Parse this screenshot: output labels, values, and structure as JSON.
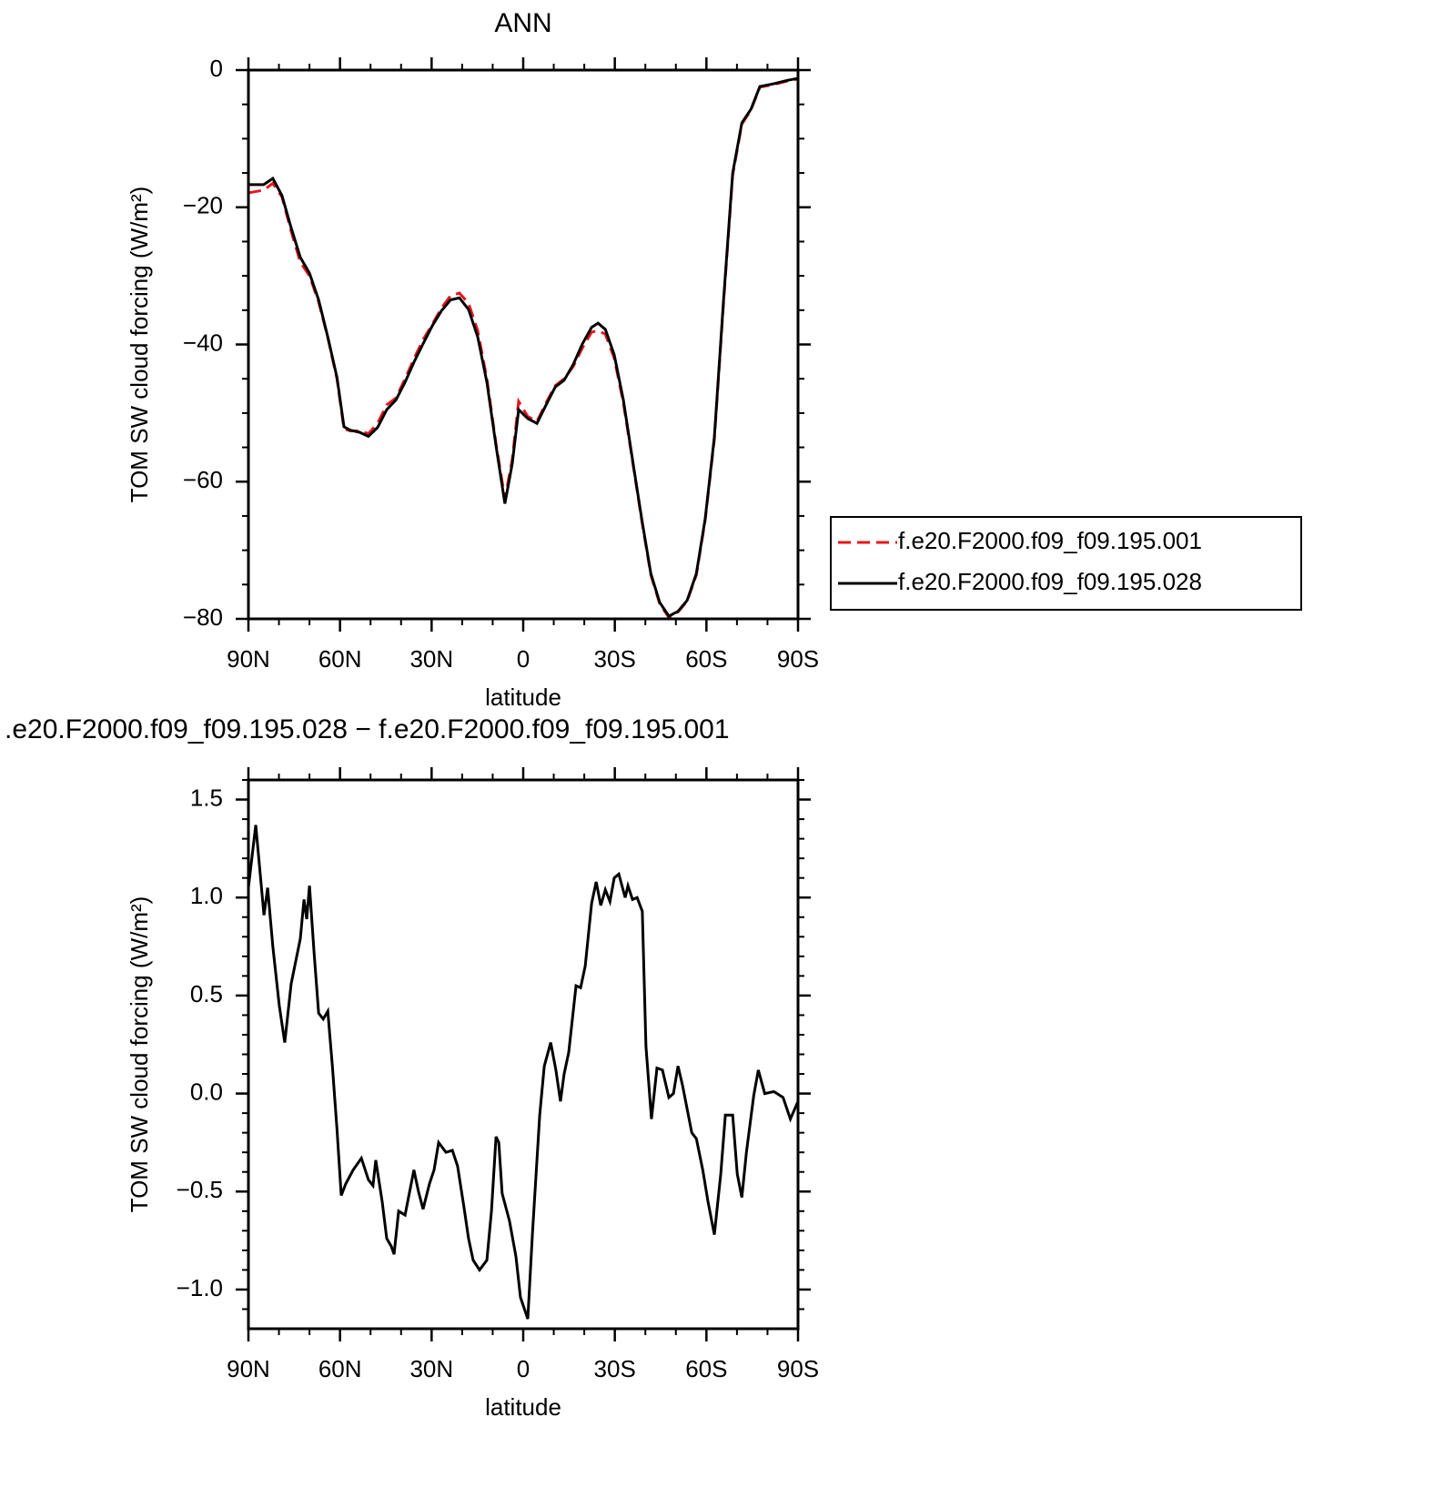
{
  "chart_data": [
    {
      "type": "line",
      "title": "ANN",
      "xlabel": "latitude",
      "ylabel": "TOM SW cloud forcing (W/m²)",
      "x": [
        90,
        85,
        82,
        79,
        76,
        73,
        70,
        67,
        64,
        61,
        58.7,
        56.6,
        53.6,
        50.7,
        47.7,
        44.7,
        41.7,
        38.7,
        35.8,
        32.8,
        29.8,
        26.8,
        23.8,
        20.9,
        17.9,
        14.9,
        11.9,
        8.9,
        6,
        3.6,
        1.5,
        -1.5,
        -4.5,
        -7.5,
        -10.5,
        -13.4,
        -16.4,
        -19.4,
        -22.4,
        -24.5,
        -26.9,
        -29.8,
        -32.8,
        -35.8,
        -38.8,
        -41.8,
        -44.7,
        -47.7,
        -50.7,
        -53.7,
        -56.7,
        -59.6,
        -62.6,
        -65.6,
        -68.6,
        -71.6,
        -74.6,
        -77.5,
        -82,
        -86.5,
        -90
      ],
      "series": [
        {
          "name": "f.e20.F2000.f09_f09.195.001",
          "color": "#e8151b",
          "dash": "dashed",
          "values": [
            -17.9,
            -17.5,
            -16.5,
            -18.5,
            -23.5,
            -28,
            -30,
            -33.8,
            -39,
            -45,
            -52.3,
            -52.6,
            -52.6,
            -53,
            -51.5,
            -48.8,
            -47.8,
            -45,
            -42.1,
            -39.3,
            -37.1,
            -34.7,
            -32.9,
            -32.5,
            -34,
            -38,
            -45,
            -54.5,
            -62.5,
            -56.8,
            -48.3,
            -50.5,
            -51.2,
            -48.5,
            -46,
            -45,
            -43.2,
            -40.5,
            -38.2,
            -38,
            -38.5,
            -42,
            -48.5,
            -57,
            -65.6,
            -73.6,
            -77.8,
            -79.8,
            -79,
            -77.4,
            -73.6,
            -65.6,
            -53.8,
            -34,
            -15.3,
            -7.9,
            -5.8,
            -2.5,
            -2.1,
            -1.6,
            -1.3
          ]
        },
        {
          "name": "f.e20.F2000.f09_f09.195.028",
          "color": "#000000",
          "dash": "solid",
          "values": [
            -16.7,
            -16.7,
            -15.8,
            -18.3,
            -23,
            -27.3,
            -29.6,
            -33.5,
            -38.9,
            -44.8,
            -52,
            -52.5,
            -52.8,
            -53.4,
            -52.1,
            -49.5,
            -48.1,
            -45.5,
            -42.6,
            -39.9,
            -37.3,
            -35.1,
            -33.5,
            -33.2,
            -34.9,
            -38.9,
            -45.5,
            -54.8,
            -63.2,
            -57.4,
            -49.5,
            -50.8,
            -51.5,
            -48.8,
            -46.2,
            -45.2,
            -42.9,
            -39.9,
            -37.5,
            -36.9,
            -37.8,
            -41.5,
            -48.1,
            -56.8,
            -65.4,
            -73.4,
            -77.6,
            -79.6,
            -78.9,
            -77.3,
            -73.4,
            -65.4,
            -53.5,
            -33.6,
            -15,
            -7.7,
            -5.7,
            -2.4,
            -2.0,
            -1.5,
            -1.2
          ]
        }
      ],
      "xlim": [
        90,
        -90
      ],
      "xticks": [
        {
          "value": 90,
          "label": "90N"
        },
        {
          "value": 60,
          "label": "60N"
        },
        {
          "value": 30,
          "label": "30N"
        },
        0,
        {
          "value": -30,
          "label": "30S"
        },
        {
          "value": -60,
          "label": "60S"
        },
        {
          "value": -90,
          "label": "90S"
        }
      ],
      "ylim": [
        -80,
        0
      ],
      "yticks": [
        {
          "value": -80,
          "label": "−80"
        },
        {
          "value": -60,
          "label": "−60"
        },
        {
          "value": -40,
          "label": "−40"
        },
        {
          "value": -20,
          "label": "−20"
        },
        0
      ],
      "legend": "right"
    },
    {
      "type": "line",
      "title": ".e20.F2000.f09_f09.195.028 − f.e20.F2000.f09_f09.195.001",
      "xlabel": "latitude",
      "ylabel": "TOM SW cloud forcing (W/m²)",
      "x": [
        90,
        87.6,
        84.9,
        83.7,
        82,
        79.9,
        78.1,
        76,
        73,
        71.8,
        70.9,
        70,
        68.5,
        67,
        65.5,
        64,
        62.5,
        61,
        59.6,
        58.1,
        55.7,
        53,
        50.7,
        49.2,
        48.3,
        46.2,
        44.7,
        43.2,
        42.3,
        40.8,
        38.7,
        35.8,
        34.3,
        32.8,
        30.7,
        29.2,
        27.7,
        25.3,
        23.2,
        21.5,
        19.4,
        17.9,
        16.4,
        14.3,
        11.9,
        10.4,
        8.9,
        8,
        6.9,
        4.5,
        2.4,
        0.9,
        -1.5,
        -3,
        -5.4,
        -6.9,
        -9,
        -10.7,
        -12.2,
        -13.4,
        -14.9,
        -17.3,
        -18.8,
        -20.3,
        -22.4,
        -23.9,
        -25.4,
        -26.9,
        -28.4,
        -29.8,
        -31.3,
        -33.4,
        -34.3,
        -35.8,
        -37.3,
        -39,
        -40.2,
        -42,
        -43.8,
        -45.6,
        -47.7,
        -49.2,
        -50.7,
        -52.2,
        -55.2,
        -56.7,
        -58.8,
        -60.5,
        -62.6,
        -64.7,
        -66.2,
        -68.6,
        -70.1,
        -71.6,
        -73.1,
        -75.5,
        -77,
        -79.1,
        -82.1,
        -85.1,
        -87.5,
        -90
      ],
      "series": [
        {
          "color": "#000000",
          "dash": "solid",
          "values": [
            1.05,
            1.37,
            0.91,
            1.05,
            0.75,
            0.45,
            0.26,
            0.56,
            0.79,
            0.99,
            0.89,
            1.06,
            0.72,
            0.41,
            0.38,
            0.42,
            0.14,
            -0.18,
            -0.52,
            -0.46,
            -0.39,
            -0.33,
            -0.44,
            -0.47,
            -0.34,
            -0.55,
            -0.74,
            -0.78,
            -0.82,
            -0.6,
            -0.62,
            -0.39,
            -0.5,
            -0.59,
            -0.46,
            -0.39,
            -0.25,
            -0.3,
            -0.29,
            -0.37,
            -0.58,
            -0.74,
            -0.85,
            -0.9,
            -0.85,
            -0.6,
            -0.22,
            -0.25,
            -0.51,
            -0.65,
            -0.83,
            -1.04,
            -1.15,
            -0.72,
            -0.11,
            0.14,
            0.26,
            0.12,
            -0.04,
            0.1,
            0.21,
            0.55,
            0.54,
            0.65,
            0.97,
            1.08,
            0.96,
            1.04,
            0.98,
            1.1,
            1.12,
            1.0,
            1.06,
            0.99,
            1.0,
            0.93,
            0.24,
            -0.13,
            0.13,
            0.12,
            -0.02,
            0.0,
            0.14,
            0.04,
            -0.2,
            -0.23,
            -0.39,
            -0.55,
            -0.72,
            -0.41,
            -0.11,
            -0.11,
            -0.41,
            -0.53,
            -0.3,
            -0.01,
            0.12,
            0.0,
            0.01,
            -0.02,
            -0.13,
            -0.04
          ]
        }
      ],
      "xlim": [
        90,
        -90
      ],
      "xticks": [
        {
          "value": 90,
          "label": "90N"
        },
        {
          "value": 60,
          "label": "60N"
        },
        {
          "value": 30,
          "label": "30N"
        },
        0,
        {
          "value": -30,
          "label": "30S"
        },
        {
          "value": -60,
          "label": "60S"
        },
        {
          "value": -90,
          "label": "90S"
        }
      ],
      "ylim": [
        -1.2,
        1.6
      ],
      "yticks": [
        {
          "value": -1,
          "label": "−1.0"
        },
        {
          "value": -0.5,
          "label": "−0.5"
        },
        {
          "value": 0,
          "label": "0.0"
        },
        0.5,
        {
          "value": 1,
          "label": "1.0"
        },
        1.5
      ]
    }
  ]
}
